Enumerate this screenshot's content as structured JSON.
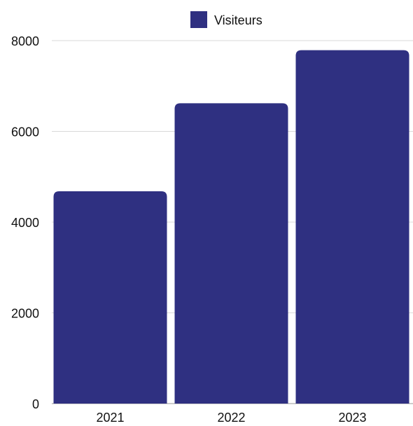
{
  "chart_data": {
    "type": "bar",
    "categories": [
      "2021",
      "2022",
      "2023"
    ],
    "series": [
      {
        "name": "Visiteurs",
        "values": [
          4680,
          6620,
          7790
        ],
        "color": "#2f3081"
      }
    ],
    "ylim": [
      0,
      8000
    ],
    "yticks": [
      0,
      2000,
      4000,
      6000,
      8000
    ],
    "grid": true,
    "legend_position": "top-center"
  }
}
